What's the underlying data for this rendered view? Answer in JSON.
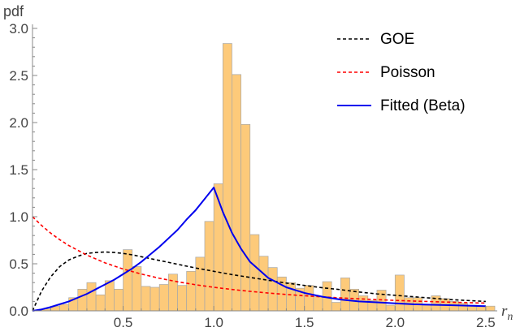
{
  "chart_data": {
    "type": "histogram",
    "title": "",
    "xlabel_main": "r",
    "xlabel_sub": "n",
    "ylabel": "pdf",
    "xlim": [
      0.0,
      2.55
    ],
    "ylim": [
      0.0,
      3.0
    ],
    "x_ticks": [
      0.5,
      1.0,
      1.5,
      2.0,
      2.5
    ],
    "x_tick_labels": [
      "0.5",
      "1.0",
      "1.5",
      "2.0",
      "2.5"
    ],
    "y_ticks": [
      0.0,
      0.5,
      1.0,
      1.5,
      2.0,
      2.5,
      3.0
    ],
    "y_tick_labels": [
      "0.0",
      "0.5",
      "1.0",
      "1.5",
      "2.0",
      "2.5",
      "3.0"
    ],
    "histogram": {
      "name": "Data",
      "bin_width": 0.05,
      "bin_start": 0.0,
      "fill_color": "#fdca7a",
      "edge_color": "#a8a8a8",
      "values": [
        0.01,
        0.02,
        0.05,
        0.07,
        0.14,
        0.23,
        0.3,
        0.17,
        0.32,
        0.23,
        0.65,
        0.47,
        0.26,
        0.25,
        0.28,
        0.39,
        0.27,
        0.42,
        0.57,
        0.95,
        1.35,
        2.84,
        2.51,
        1.98,
        0.81,
        0.58,
        0.46,
        0.36,
        0.3,
        0.24,
        0.27,
        0.15,
        0.31,
        0.09,
        0.35,
        0.23,
        0.16,
        0.11,
        0.22,
        0.06,
        0.38,
        0.14,
        0.14,
        0.06,
        0.16,
        0.13,
        0.1,
        0.08,
        0.06,
        0.05,
        0.05
      ]
    },
    "series": [
      {
        "name": "GOE",
        "style": "dashed",
        "color": "#000000",
        "x": [
          0.0,
          0.05,
          0.1,
          0.15,
          0.2,
          0.25,
          0.3,
          0.35,
          0.4,
          0.45,
          0.5,
          0.55,
          0.6,
          0.65,
          0.7,
          0.75,
          0.8,
          0.9,
          1.0,
          1.1,
          1.2,
          1.3,
          1.4,
          1.5,
          1.6,
          1.7,
          1.8,
          1.9,
          2.0,
          2.1,
          2.2,
          2.3,
          2.4,
          2.5
        ],
        "y": [
          0.0,
          0.21,
          0.36,
          0.47,
          0.54,
          0.58,
          0.61,
          0.62,
          0.625,
          0.62,
          0.61,
          0.595,
          0.575,
          0.555,
          0.535,
          0.515,
          0.495,
          0.455,
          0.42,
          0.385,
          0.355,
          0.325,
          0.295,
          0.27,
          0.245,
          0.225,
          0.2,
          0.18,
          0.165,
          0.15,
          0.135,
          0.12,
          0.11,
          0.1
        ]
      },
      {
        "name": "Poisson",
        "style": "dashed",
        "color": "#ff0000",
        "x": [
          0.0,
          0.05,
          0.1,
          0.15,
          0.2,
          0.3,
          0.4,
          0.5,
          0.6,
          0.7,
          0.8,
          0.9,
          1.0,
          1.1,
          1.2,
          1.3,
          1.4,
          1.5,
          1.6,
          1.7,
          1.8,
          1.9,
          2.0,
          2.1,
          2.2,
          2.3,
          2.4,
          2.5
        ],
        "y": [
          1.0,
          0.907,
          0.826,
          0.756,
          0.694,
          0.592,
          0.51,
          0.444,
          0.391,
          0.346,
          0.309,
          0.277,
          0.25,
          0.227,
          0.207,
          0.189,
          0.174,
          0.16,
          0.148,
          0.137,
          0.128,
          0.119,
          0.111,
          0.104,
          0.098,
          0.092,
          0.087,
          0.082
        ]
      },
      {
        "name": "Fitted (Beta)",
        "style": "solid",
        "color": "#0000ee",
        "x": [
          0.0,
          0.05,
          0.1,
          0.15,
          0.2,
          0.25,
          0.3,
          0.35,
          0.4,
          0.45,
          0.5,
          0.55,
          0.6,
          0.65,
          0.7,
          0.75,
          0.8,
          0.85,
          0.9,
          0.95,
          1.0,
          1.05,
          1.1,
          1.15,
          1.2,
          1.3,
          1.4,
          1.5,
          1.6,
          1.7,
          1.8,
          1.9,
          2.0,
          2.1,
          2.2,
          2.3,
          2.4,
          2.5
        ],
        "y": [
          0.0,
          0.015,
          0.04,
          0.07,
          0.1,
          0.14,
          0.18,
          0.23,
          0.28,
          0.33,
          0.39,
          0.45,
          0.52,
          0.6,
          0.68,
          0.77,
          0.86,
          0.97,
          1.07,
          1.19,
          1.31,
          1.05,
          0.83,
          0.66,
          0.52,
          0.35,
          0.25,
          0.19,
          0.15,
          0.12,
          0.1,
          0.09,
          0.08,
          0.07,
          0.065,
          0.06,
          0.055,
          0.05
        ]
      }
    ],
    "legend": {
      "position": "top-right",
      "entries": [
        {
          "label": "GOE",
          "color": "#000000",
          "style": "dashed"
        },
        {
          "label": "Poisson",
          "color": "#ff0000",
          "style": "dashed"
        },
        {
          "label": "Fitted (Beta)",
          "color": "#0000ee",
          "style": "solid"
        }
      ]
    }
  }
}
